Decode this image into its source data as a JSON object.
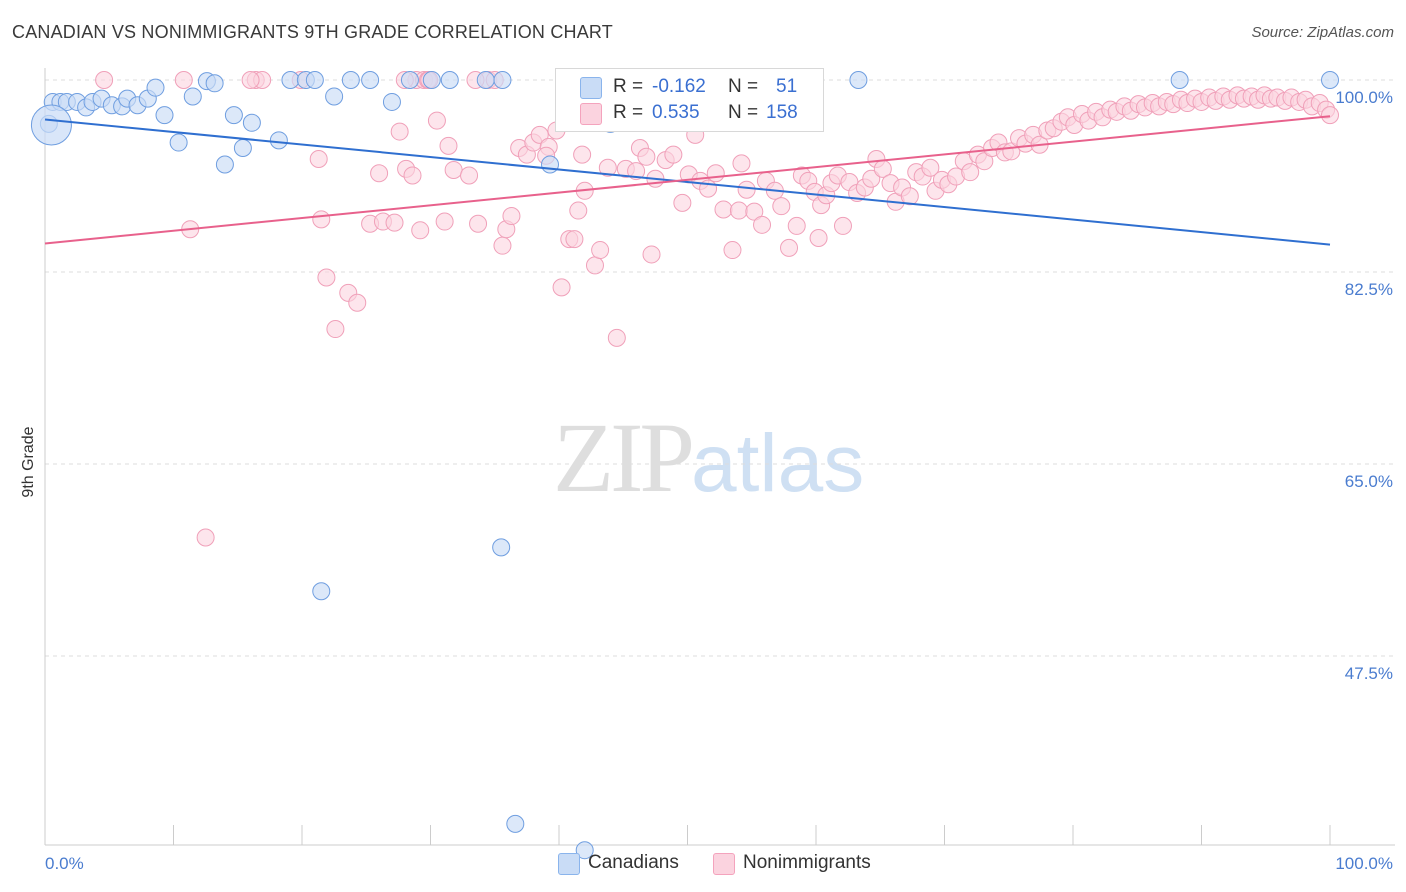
{
  "title": "CANADIAN VS NONIMMIGRANTS 9TH GRADE CORRELATION CHART",
  "source": "Source: ZipAtlas.com",
  "watermark": {
    "zip": "ZIP",
    "atlas": "atlas"
  },
  "legend_top": {
    "rows": [
      {
        "r_label": "R = ",
        "r_value": "-0.162",
        "n_label": "N = ",
        "n_value": "51",
        "color": "#8ab4ec"
      },
      {
        "r_label": "R = ",
        "r_value": "0.535",
        "n_label": "N = ",
        "n_value": "158",
        "color": "#f4a3bd"
      }
    ]
  },
  "legend_bottom": {
    "items": [
      {
        "label": "Canadians",
        "color": "#8ab4ec"
      },
      {
        "label": "Nonimmigrants",
        "color": "#f4a3bd"
      }
    ]
  },
  "chart_data": {
    "type": "scatter",
    "title": "CANADIAN VS NONIMMIGRANTS 9TH GRADE CORRELATION CHART",
    "xlabel": "",
    "ylabel": "9th Grade",
    "xlim": [
      0,
      100
    ],
    "ylim": [
      32,
      100
    ],
    "x_tick_labels": [
      "0.0%",
      "100.0%"
    ],
    "y_ticks": [
      100.0,
      82.5,
      65.0,
      47.5
    ],
    "y_tick_labels": [
      "100.0%",
      "82.5%",
      "65.0%",
      "47.5%"
    ],
    "grid": "horizontal-dashed",
    "legend_position": "top-center",
    "series": [
      {
        "name": "Canadians",
        "color": "#8ab4ec",
        "line_color": "#2f6fd0",
        "trend": {
          "x": [
            0,
            100
          ],
          "y": [
            96.4,
            85.0
          ]
        },
        "points": [
          [
            0.3,
            96
          ],
          [
            0.6,
            98
          ],
          [
            1.2,
            98
          ],
          [
            1.7,
            98
          ],
          [
            2.5,
            98
          ],
          [
            3.2,
            97.5
          ],
          [
            3.7,
            98
          ],
          [
            4.4,
            98.3
          ],
          [
            5.2,
            97.7
          ],
          [
            6.0,
            97.6
          ],
          [
            6.4,
            98.3
          ],
          [
            7.2,
            97.7
          ],
          [
            8.0,
            98.3
          ],
          [
            8.6,
            99.3
          ],
          [
            9.3,
            96.8
          ],
          [
            10.4,
            94.3
          ],
          [
            11.5,
            98.5
          ],
          [
            12.6,
            99.9
          ],
          [
            13.2,
            99.7
          ],
          [
            14.0,
            92.3
          ],
          [
            14.7,
            96.8
          ],
          [
            15.4,
            93.8
          ],
          [
            16.1,
            96.1
          ],
          [
            18.2,
            94.5
          ],
          [
            19.1,
            100
          ],
          [
            20.3,
            100
          ],
          [
            21.0,
            100
          ],
          [
            22.5,
            98.5
          ],
          [
            23.8,
            100
          ],
          [
            25.3,
            100
          ],
          [
            27.0,
            98.0
          ],
          [
            28.4,
            100
          ],
          [
            30.1,
            100
          ],
          [
            31.5,
            100
          ],
          [
            34.3,
            100
          ],
          [
            35.6,
            100
          ],
          [
            39.3,
            92.3
          ],
          [
            40.8,
            100
          ],
          [
            43.2,
            100
          ],
          [
            44.0,
            96.0
          ],
          [
            46.0,
            100
          ],
          [
            47.8,
            100
          ],
          [
            49.5,
            100
          ],
          [
            50.8,
            100
          ],
          [
            21.5,
            53.4
          ],
          [
            35.5,
            57.4
          ],
          [
            36.6,
            32.2
          ],
          [
            42.0,
            29.8
          ],
          [
            63.3,
            100
          ],
          [
            88.3,
            100
          ],
          [
            100,
            100
          ]
        ],
        "big_point": [
          0.5,
          95.9
        ]
      },
      {
        "name": "Nonimmigrants",
        "color": "#f4a3bd",
        "line_color": "#e8618c",
        "trend": {
          "x": [
            0,
            100
          ],
          "y": [
            85.1,
            96.7
          ]
        },
        "points": [
          [
            4.6,
            100
          ],
          [
            11.3,
            86.4
          ],
          [
            12.5,
            58.3
          ],
          [
            16.4,
            100
          ],
          [
            16.9,
            100
          ],
          [
            19.9,
            100
          ],
          [
            21.3,
            92.8
          ],
          [
            21.5,
            87.3
          ],
          [
            21.9,
            82.0
          ],
          [
            22.6,
            77.3
          ],
          [
            23.6,
            80.6
          ],
          [
            24.3,
            79.7
          ],
          [
            25.3,
            86.9
          ],
          [
            26.0,
            91.5
          ],
          [
            26.3,
            87.1
          ],
          [
            27.2,
            87.0
          ],
          [
            27.6,
            95.3
          ],
          [
            28.1,
            91.9
          ],
          [
            28.6,
            91.3
          ],
          [
            28.9,
            100
          ],
          [
            29.2,
            86.3
          ],
          [
            29.5,
            100
          ],
          [
            29.8,
            100
          ],
          [
            29.9,
            100
          ],
          [
            30.5,
            96.3
          ],
          [
            31.1,
            87.1
          ],
          [
            31.4,
            94.0
          ],
          [
            31.8,
            91.8
          ],
          [
            33.0,
            91.3
          ],
          [
            33.7,
            86.9
          ],
          [
            34.5,
            100
          ],
          [
            35.0,
            100
          ],
          [
            35.6,
            84.9
          ],
          [
            35.9,
            86.4
          ],
          [
            36.3,
            87.6
          ],
          [
            36.9,
            93.8
          ],
          [
            37.5,
            93.2
          ],
          [
            38.0,
            94.3
          ],
          [
            38.5,
            95.0
          ],
          [
            39.2,
            93.9
          ],
          [
            39.8,
            95.4
          ],
          [
            40.2,
            81.1
          ],
          [
            40.8,
            85.5
          ],
          [
            41.2,
            85.5
          ],
          [
            41.5,
            88.1
          ],
          [
            42.0,
            89.9
          ],
          [
            42.8,
            83.1
          ],
          [
            43.2,
            84.5
          ],
          [
            43.8,
            92.0
          ],
          [
            44.5,
            76.5
          ],
          [
            45.2,
            91.9
          ],
          [
            46.0,
            91.7
          ],
          [
            46.3,
            93.8
          ],
          [
            46.8,
            93.0
          ],
          [
            47.2,
            84.1
          ],
          [
            47.5,
            91.0
          ],
          [
            48.3,
            92.7
          ],
          [
            48.9,
            93.2
          ],
          [
            49.6,
            88.8
          ],
          [
            50.1,
            91.4
          ],
          [
            50.6,
            95.0
          ],
          [
            51.0,
            90.8
          ],
          [
            51.6,
            90.1
          ],
          [
            52.2,
            91.5
          ],
          [
            52.8,
            88.2
          ],
          [
            53.5,
            84.5
          ],
          [
            54.0,
            88.1
          ],
          [
            54.6,
            90.0
          ],
          [
            55.2,
            88.0
          ],
          [
            55.8,
            86.8
          ],
          [
            56.1,
            90.8
          ],
          [
            56.8,
            89.9
          ],
          [
            57.3,
            88.5
          ],
          [
            57.9,
            84.7
          ],
          [
            58.5,
            86.7
          ],
          [
            58.9,
            91.3
          ],
          [
            59.4,
            90.8
          ],
          [
            59.9,
            89.8
          ],
          [
            60.4,
            88.6
          ],
          [
            60.8,
            89.5
          ],
          [
            61.2,
            90.6
          ],
          [
            61.7,
            91.3
          ],
          [
            62.1,
            86.7
          ],
          [
            62.6,
            90.7
          ],
          [
            63.2,
            89.7
          ],
          [
            63.8,
            90.2
          ],
          [
            64.3,
            91.0
          ],
          [
            64.7,
            92.8
          ],
          [
            65.2,
            91.9
          ],
          [
            65.8,
            90.6
          ],
          [
            66.2,
            88.9
          ],
          [
            66.7,
            90.2
          ],
          [
            67.3,
            89.4
          ],
          [
            67.8,
            91.6
          ],
          [
            68.3,
            91.2
          ],
          [
            68.9,
            92.0
          ],
          [
            69.3,
            89.9
          ],
          [
            69.8,
            90.9
          ],
          [
            70.3,
            90.5
          ],
          [
            70.9,
            91.2
          ],
          [
            71.5,
            92.6
          ],
          [
            72.0,
            91.6
          ],
          [
            72.6,
            93.2
          ],
          [
            73.1,
            92.6
          ],
          [
            73.7,
            93.8
          ],
          [
            74.2,
            94.3
          ],
          [
            74.7,
            93.4
          ],
          [
            75.2,
            93.5
          ],
          [
            75.8,
            94.7
          ],
          [
            76.3,
            94.2
          ],
          [
            76.9,
            95.0
          ],
          [
            77.4,
            94.1
          ],
          [
            78.0,
            95.4
          ],
          [
            78.5,
            95.6
          ],
          [
            79.1,
            96.2
          ],
          [
            79.6,
            96.6
          ],
          [
            80.1,
            95.9
          ],
          [
            80.7,
            96.9
          ],
          [
            81.2,
            96.3
          ],
          [
            81.8,
            97.1
          ],
          [
            82.3,
            96.6
          ],
          [
            82.9,
            97.3
          ],
          [
            83.4,
            97.1
          ],
          [
            84.0,
            97.6
          ],
          [
            84.5,
            97.2
          ],
          [
            85.1,
            97.8
          ],
          [
            85.6,
            97.5
          ],
          [
            86.2,
            97.9
          ],
          [
            86.7,
            97.6
          ],
          [
            87.3,
            98.0
          ],
          [
            87.8,
            97.8
          ],
          [
            88.4,
            98.2
          ],
          [
            88.9,
            97.9
          ],
          [
            89.5,
            98.3
          ],
          [
            90.0,
            98.0
          ],
          [
            90.6,
            98.4
          ],
          [
            91.1,
            98.1
          ],
          [
            91.7,
            98.5
          ],
          [
            92.2,
            98.2
          ],
          [
            92.8,
            98.6
          ],
          [
            93.3,
            98.3
          ],
          [
            93.9,
            98.5
          ],
          [
            94.4,
            98.2
          ],
          [
            94.9,
            98.6
          ],
          [
            95.4,
            98.3
          ],
          [
            95.9,
            98.4
          ],
          [
            96.5,
            98.1
          ],
          [
            97.0,
            98.4
          ],
          [
            97.6,
            98.0
          ],
          [
            98.1,
            98.2
          ],
          [
            98.6,
            97.6
          ],
          [
            99.2,
            97.9
          ],
          [
            99.7,
            97.3
          ],
          [
            100,
            96.8
          ],
          [
            28.0,
            100
          ],
          [
            16.0,
            100
          ],
          [
            10.8,
            100
          ],
          [
            41.8,
            93.2
          ],
          [
            54.2,
            92.4
          ],
          [
            60.2,
            85.6
          ],
          [
            39.0,
            93.1
          ],
          [
            33.5,
            100
          ]
        ]
      }
    ]
  }
}
